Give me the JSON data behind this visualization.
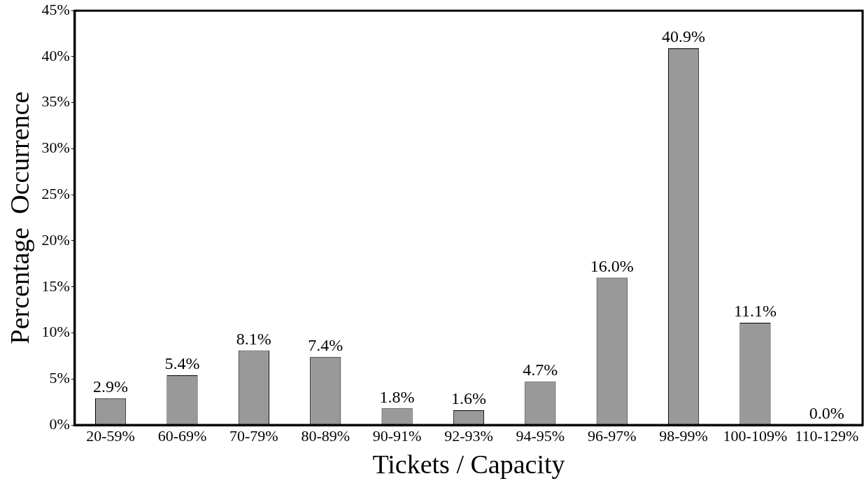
{
  "chart_data": {
    "type": "bar",
    "xlabel": "Tickets / Capacity",
    "ylabel": "Percentage  Occurrence",
    "categories": [
      "20-59%",
      "60-69%",
      "70-79%",
      "80-89%",
      "90-91%",
      "92-93%",
      "94-95%",
      "96-97%",
      "98-99%",
      "100-109%",
      "110-129%"
    ],
    "values": [
      2.9,
      5.4,
      8.1,
      7.4,
      1.8,
      1.6,
      4.7,
      16.0,
      40.9,
      11.1,
      0.0
    ],
    "value_labels": [
      "2.9%",
      "5.4%",
      "8.1%",
      "7.4%",
      "1.8%",
      "1.6%",
      "4.7%",
      "16.0%",
      "40.9%",
      "11.1%",
      "0.0%"
    ],
    "color": "#999999",
    "ylim": [
      0,
      45
    ],
    "yticks": [
      {
        "value": 0,
        "label": "0%"
      },
      {
        "value": 5,
        "label": "5%"
      },
      {
        "value": 10,
        "label": "10%"
      },
      {
        "value": 15,
        "label": "15%"
      },
      {
        "value": 20,
        "label": "20%"
      },
      {
        "value": 25,
        "label": "25%"
      },
      {
        "value": 30,
        "label": "30%"
      },
      {
        "value": 35,
        "label": "35%"
      },
      {
        "value": 40,
        "label": "40%"
      },
      {
        "value": 45,
        "label": "45%"
      }
    ],
    "grid": false,
    "legend": false
  }
}
